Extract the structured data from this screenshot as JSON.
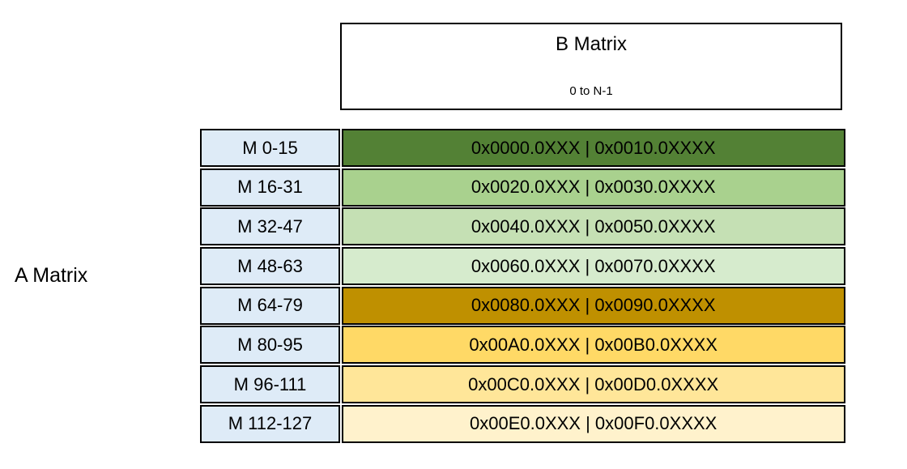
{
  "b_matrix_box": {
    "title": "B Matrix",
    "subtitle": "0 to N-1"
  },
  "a_matrix_label": "A Matrix",
  "table": {
    "label_cell_bg": "#DEEBF7",
    "border_color": "#000000",
    "rows": [
      {
        "label": "M 0-15",
        "value": "0x0000.0XXX | 0x0010.0XXXX",
        "bg": "#538135"
      },
      {
        "label": "M 16-31",
        "value": "0x0020.0XXX | 0x0030.0XXXX",
        "bg": "#A9D18E"
      },
      {
        "label": "M 32-47",
        "value": "0x0040.0XXX | 0x0050.0XXXX",
        "bg": "#C5E0B4"
      },
      {
        "label": "M 48-63",
        "value": "0x0060.0XXX | 0x0070.0XXXX",
        "bg": "#D6EBCD"
      },
      {
        "label": "M 64-79",
        "value": "0x0080.0XXX | 0x0090.0XXXX",
        "bg": "#BF9000"
      },
      {
        "label": "M 80-95",
        "value": "0x00A0.0XXX | 0x00B0.0XXXX",
        "bg": "#FFD966"
      },
      {
        "label": "M 96-111",
        "value": "0x00C0.0XXX | 0x00D0.0XXXX",
        "bg": "#FFE699"
      },
      {
        "label": "M 112-127",
        "value": "0x00E0.0XXX | 0x00F0.0XXXX",
        "bg": "#FFF2CC"
      }
    ]
  }
}
